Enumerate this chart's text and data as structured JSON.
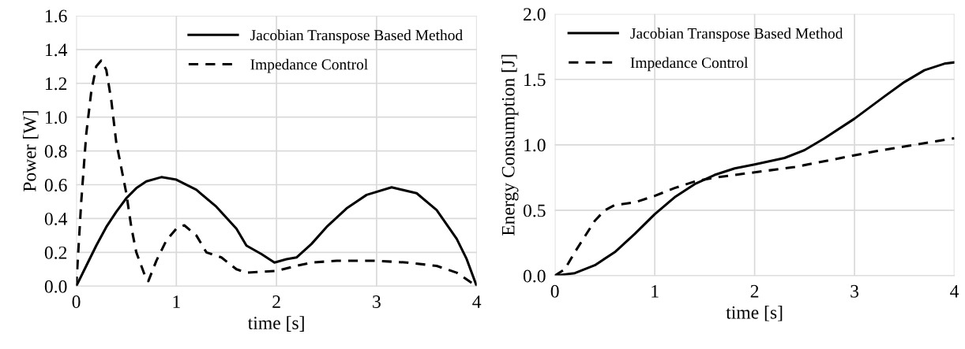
{
  "chart_data": [
    {
      "type": "line",
      "xlabel": "time [s]",
      "ylabel": "Power [W]",
      "xlim": [
        0,
        4
      ],
      "ylim": [
        0,
        1.6
      ],
      "xticks": [
        0,
        1,
        2,
        3,
        4
      ],
      "yticks": [
        {
          "value": 0,
          "label": "0.0"
        },
        0.2,
        0.4,
        0.6,
        0.8,
        {
          "value": 1,
          "label": "1.0"
        },
        1.2,
        1.4,
        1.6
      ],
      "grid": true,
      "legend": "top right",
      "series": [
        {
          "name": "Jacobian Transpose Based Method",
          "color": "#000000",
          "line_style": "solid",
          "x": [
            0,
            0.1,
            0.2,
            0.3,
            0.4,
            0.5,
            0.6,
            0.7,
            0.85,
            1.0,
            1.2,
            1.4,
            1.6,
            1.7,
            1.85,
            1.98,
            2.1,
            2.2,
            2.35,
            2.5,
            2.7,
            2.9,
            3.15,
            3.4,
            3.6,
            3.8,
            3.9,
            4.0
          ],
          "values": [
            0,
            0.12,
            0.24,
            0.35,
            0.44,
            0.52,
            0.58,
            0.62,
            0.645,
            0.63,
            0.57,
            0.47,
            0.34,
            0.24,
            0.19,
            0.14,
            0.16,
            0.17,
            0.25,
            0.35,
            0.46,
            0.54,
            0.585,
            0.55,
            0.45,
            0.28,
            0.16,
            0
          ]
        },
        {
          "name": "Impedance Control",
          "color": "#000000",
          "line_style": "dashed",
          "x": [
            0,
            0.05,
            0.1,
            0.15,
            0.2,
            0.25,
            0.3,
            0.35,
            0.4,
            0.5,
            0.55,
            0.6,
            0.7,
            0.72,
            0.8,
            0.9,
            1.0,
            1.08,
            1.2,
            1.3,
            1.45,
            1.6,
            1.7,
            2.0,
            2.2,
            2.35,
            2.6,
            3.0,
            3.3,
            3.6,
            3.8,
            4.0
          ],
          "values": [
            0,
            0.5,
            0.9,
            1.15,
            1.3,
            1.335,
            1.28,
            1.1,
            0.85,
            0.55,
            0.35,
            0.2,
            0.04,
            0.03,
            0.15,
            0.27,
            0.34,
            0.36,
            0.3,
            0.2,
            0.17,
            0.1,
            0.08,
            0.09,
            0.12,
            0.14,
            0.15,
            0.15,
            0.14,
            0.12,
            0.08,
            0
          ]
        }
      ]
    },
    {
      "type": "line",
      "xlabel": "time [s]",
      "ylabel": "Energy Consumption [J]",
      "xlim": [
        0,
        4
      ],
      "ylim": [
        0,
        2
      ],
      "xticks": [
        0,
        1,
        2,
        3,
        4
      ],
      "yticks": [
        {
          "value": 0,
          "label": "0.0"
        },
        0.5,
        {
          "value": 1,
          "label": "1.0"
        },
        1.5,
        {
          "value": 2,
          "label": "2.0"
        }
      ],
      "grid": true,
      "legend": "top left",
      "series": [
        {
          "name": "Jacobian Transpose Based Method",
          "color": "#000000",
          "line_style": "solid",
          "x": [
            0,
            0.2,
            0.4,
            0.6,
            0.8,
            1.0,
            1.2,
            1.4,
            1.6,
            1.8,
            2.0,
            2.3,
            2.5,
            2.7,
            3.0,
            3.3,
            3.5,
            3.7,
            3.9,
            4.0
          ],
          "values": [
            0,
            0.02,
            0.08,
            0.18,
            0.32,
            0.47,
            0.6,
            0.7,
            0.77,
            0.82,
            0.85,
            0.9,
            0.96,
            1.05,
            1.2,
            1.37,
            1.48,
            1.57,
            1.62,
            1.63
          ]
        },
        {
          "name": "Impedance Control",
          "color": "#000000",
          "line_style": "dashed",
          "x": [
            0,
            0.1,
            0.2,
            0.3,
            0.4,
            0.5,
            0.6,
            0.8,
            1.0,
            1.2,
            1.4,
            1.6,
            2.0,
            2.4,
            2.8,
            3.2,
            3.6,
            4.0
          ],
          "values": [
            0,
            0.05,
            0.18,
            0.3,
            0.42,
            0.5,
            0.54,
            0.56,
            0.61,
            0.67,
            0.72,
            0.75,
            0.79,
            0.83,
            0.89,
            0.95,
            1.0,
            1.05
          ]
        }
      ]
    }
  ]
}
